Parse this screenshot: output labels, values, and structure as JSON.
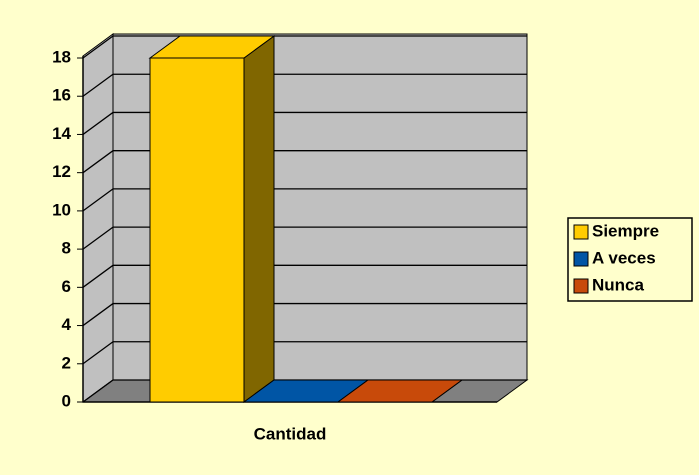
{
  "chart_data": {
    "type": "bar3d",
    "categories": [
      "Cantidad"
    ],
    "series": [
      {
        "name": "Siempre",
        "color": "#ffcc00",
        "values": [
          18
        ]
      },
      {
        "name": "A veces",
        "color": "#0055a5",
        "values": [
          0
        ]
      },
      {
        "name": "Nunca",
        "color": "#c84a0a",
        "values": [
          0
        ]
      }
    ],
    "ylim": [
      0,
      18
    ],
    "yticks": [
      0,
      2,
      4,
      6,
      8,
      10,
      12,
      14,
      16,
      18
    ],
    "grid": true,
    "legend": "right"
  }
}
